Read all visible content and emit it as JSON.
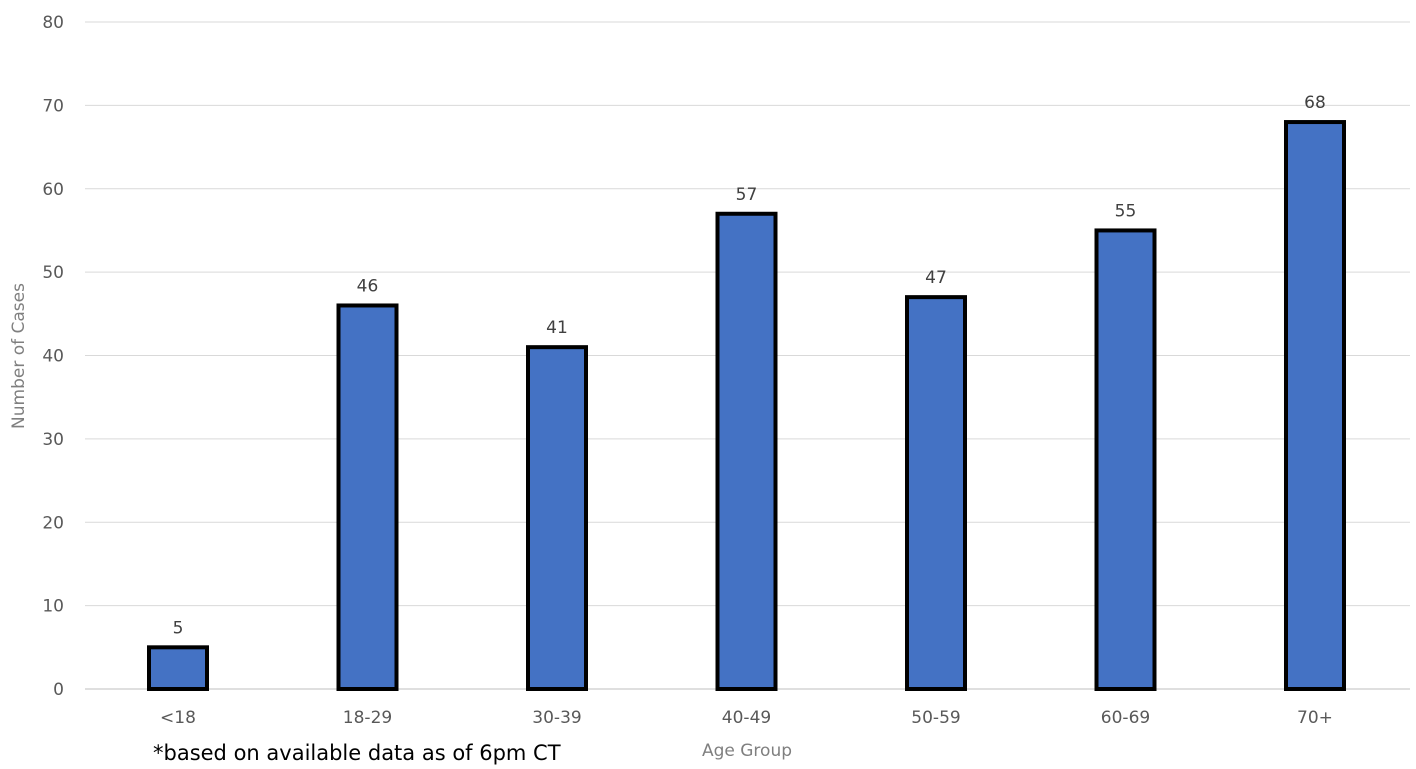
{
  "chart_data": {
    "type": "bar",
    "categories": [
      "<18",
      "18-29",
      "30-39",
      "40-49",
      "50-59",
      "60-69",
      "70+"
    ],
    "values": [
      5,
      46,
      41,
      57,
      47,
      55,
      68
    ],
    "data_labels": [
      "5",
      "46",
      "41",
      "57",
      "47",
      "55",
      "68"
    ],
    "title": "",
    "xlabel": "Age Group",
    "ylabel": "Number of Cases",
    "ylim": [
      0,
      80
    ],
    "yticks": [
      0,
      10,
      20,
      30,
      40,
      50,
      60,
      70,
      80
    ],
    "ytick_labels": [
      "0",
      "10",
      "20",
      "30",
      "40",
      "50",
      "60",
      "70",
      "80"
    ],
    "grid": "horizontal",
    "legend": "none",
    "bar_color": "#4472c4",
    "bar_border_color": "#000000"
  },
  "footnote": "*based on available data as of 6pm CT"
}
